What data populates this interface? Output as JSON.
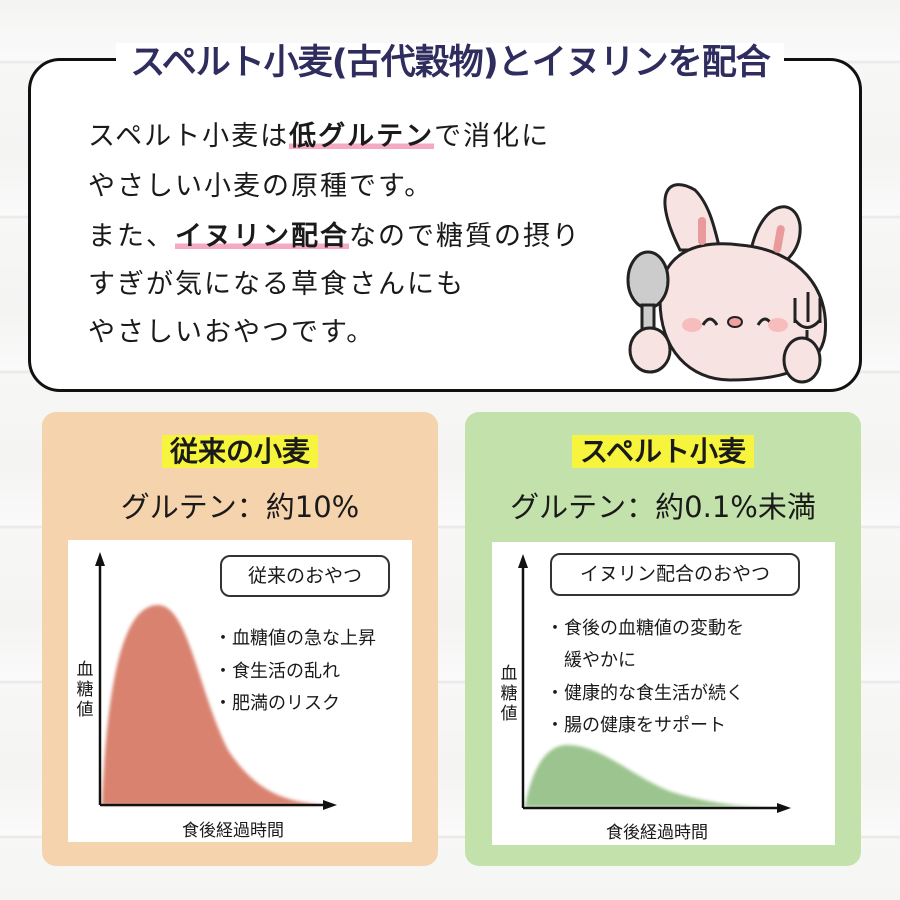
{
  "header": {
    "title": "スペルト小麦(古代穀物)とイヌリンを配合"
  },
  "intro": {
    "lines": [
      {
        "pre": "スペルト小麦は",
        "hl": "低グルテン",
        "post": "で消化に"
      },
      {
        "pre": "やさしい小麦の原種です。",
        "hl": "",
        "post": ""
      },
      {
        "pre": "また、",
        "hl": "イヌリン配合",
        "post": "なので糖質の摂り"
      },
      {
        "pre": "すぎが気になる草食さんにも",
        "hl": "",
        "post": ""
      },
      {
        "pre": "やさしいおやつです。",
        "hl": "",
        "post": ""
      }
    ],
    "mascot": "bunny-with-spoon-and-fork"
  },
  "left": {
    "heading": "従来の小麦",
    "gluten": "グルテン：約10%",
    "color": "#f5d3ad",
    "curve_color": "#d9826f",
    "chart": {
      "label": "従来のおやつ",
      "bullets": [
        "・血糖値の急な上昇",
        "・食生活の乱れ",
        "・肥満のリスク"
      ],
      "ylabel": "血糖値",
      "xlabel": "食後経過時間"
    }
  },
  "right": {
    "heading": "スペルト小麦",
    "gluten": "グルテン：約0.1%未満",
    "color": "#c3e2ab",
    "curve_color": "#9cc48f",
    "chart": {
      "label": "イヌリン配合のおやつ",
      "bullets": [
        "・食後の血糖値の変動を",
        "　緩やかに",
        "・健康的な食生活が続く",
        "・腸の健康をサポート"
      ],
      "ylabel": "血糖値",
      "xlabel": "食後経過時間"
    }
  },
  "colors": {
    "title": "#2f2d5e",
    "highlight_yellow": "#f6f43c",
    "underline_pink": "#f4a9c4"
  }
}
